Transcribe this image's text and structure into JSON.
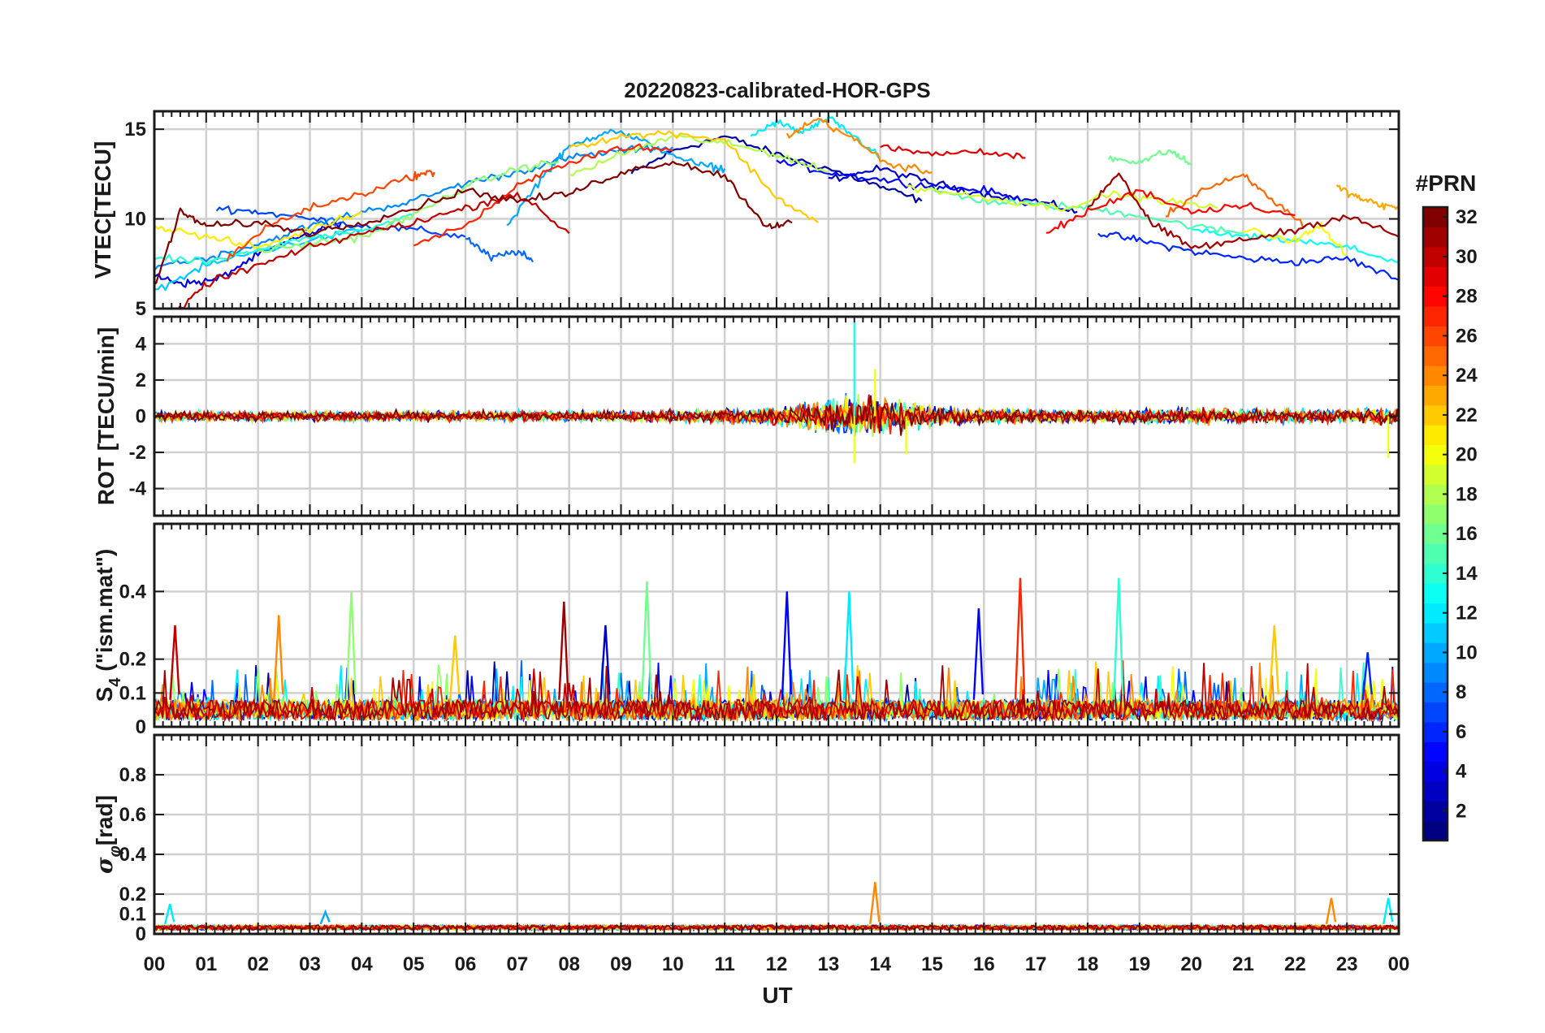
{
  "chart_data": {
    "type": "line",
    "title": "20220823-calibrated-HOR-GPS",
    "xlabel": "UT",
    "x_tick_labels": [
      "00",
      "01",
      "02",
      "03",
      "04",
      "05",
      "06",
      "07",
      "08",
      "09",
      "10",
      "11",
      "12",
      "13",
      "14",
      "15",
      "16",
      "17",
      "18",
      "19",
      "20",
      "21",
      "22",
      "23",
      "00"
    ],
    "xlim": [
      0,
      24
    ],
    "grid": true,
    "colorbar": {
      "label": "#PRN",
      "range": [
        1,
        32
      ],
      "colormap": "jet",
      "tick_labels": [
        "2",
        "4",
        "6",
        "8",
        "10",
        "12",
        "14",
        "16",
        "18",
        "20",
        "22",
        "24",
        "26",
        "28",
        "30",
        "32"
      ],
      "jet_colors": [
        "#000080",
        "#0000ff",
        "#0080ff",
        "#00ffff",
        "#80ff80",
        "#ffff00",
        "#ff8000",
        "#ff0000",
        "#800000"
      ]
    },
    "panels": [
      {
        "id": "vtec",
        "ylabel": "VTEC[TECU]",
        "ylim": [
          5,
          16
        ],
        "y_ticks": [
          5,
          10,
          15
        ],
        "y_tick_labels": [
          "5",
          "10",
          "15"
        ],
        "series": [
          {
            "prn": 2,
            "x": [
              9.2,
              10.0,
              11.0,
              12.0,
              13.0,
              14.0,
              14.8
            ],
            "y": [
              12.5,
              13.8,
              14.6,
              13.6,
              12.8,
              11.8,
              11.0
            ]
          },
          {
            "prn": 3,
            "x": [
              13.0,
              14.0,
              15.0,
              16.0,
              17.0,
              17.8
            ],
            "y": [
              12.2,
              12.8,
              12.0,
              11.4,
              11.0,
              10.4
            ]
          },
          {
            "prn": 4,
            "x": [
              0.0,
              0.6,
              1.2,
              2.0,
              3.0,
              3.6
            ],
            "y": [
              6.8,
              6.4,
              6.6,
              8.0,
              9.2,
              9.8
            ]
          },
          {
            "prn": 5,
            "x": [
              12.0,
              13.0,
              14.0,
              15.0,
              16.0,
              17.0
            ],
            "y": [
              13.2,
              12.6,
              12.2,
              11.8,
              11.6,
              10.8
            ]
          },
          {
            "prn": 6,
            "x": [
              18.2,
              19.0,
              20.0,
              21.0,
              22.0,
              23.0,
              24.0
            ],
            "y": [
              9.2,
              8.8,
              8.2,
              7.8,
              7.6,
              7.8,
              6.6
            ]
          },
          {
            "prn": 7,
            "x": [
              1.2,
              2.0,
              3.0,
              4.0,
              5.0,
              6.0
            ],
            "y": [
              10.6,
              10.4,
              10.0,
              9.6,
              9.4,
              9.0
            ]
          },
          {
            "prn": 8,
            "x": [
              6.0,
              6.5,
              7.0,
              7.3
            ],
            "y": [
              9.0,
              7.8,
              8.2,
              7.6
            ]
          },
          {
            "prn": 9,
            "x": [
              0.0,
              1.0,
              2.0,
              3.0,
              4.0,
              5.0,
              6.0,
              7.0,
              8.0,
              9.0,
              10.0
            ],
            "y": [
              7.4,
              7.8,
              8.6,
              9.6,
              10.4,
              11.0,
              12.0,
              12.6,
              13.4,
              13.8,
              14.0
            ]
          },
          {
            "prn": 10,
            "x": [
              6.8,
              7.5,
              8.0,
              8.8,
              9.5,
              10.5,
              11.0
            ],
            "y": [
              9.6,
              12.4,
              14.0,
              15.0,
              14.2,
              13.0,
              12.8
            ]
          },
          {
            "prn": 11,
            "x": [
              0.0,
              1.0,
              2.0,
              3.0,
              4.0
            ],
            "y": [
              6.0,
              7.4,
              8.2,
              8.8,
              9.4
            ]
          },
          {
            "prn": 12,
            "x": [
              11.5,
              12.0,
              12.5,
              13.0,
              13.5,
              14.0
            ],
            "y": [
              14.6,
              15.4,
              14.8,
              15.6,
              14.6,
              13.4
            ]
          },
          {
            "prn": 13,
            "x": [
              20.0,
              21.0,
              22.0,
              23.0,
              24.0
            ],
            "y": [
              9.4,
              9.0,
              8.8,
              8.4,
              7.6
            ]
          },
          {
            "prn": 14,
            "x": [
              0.0,
              1.0,
              2.0,
              3.0,
              4.0,
              5.0
            ],
            "y": [
              7.8,
              7.6,
              8.2,
              9.0,
              9.4,
              10.2
            ]
          },
          {
            "prn": 15,
            "x": [
              15.0,
              16.0,
              17.0,
              18.0,
              19.0,
              20.0,
              21.0
            ],
            "y": [
              11.6,
              11.0,
              10.8,
              10.6,
              10.2,
              9.6,
              9.2
            ]
          },
          {
            "prn": 16,
            "x": [
              18.4,
              19.0,
              19.6,
              20.0
            ],
            "y": [
              13.4,
              13.2,
              13.8,
              13.0
            ]
          },
          {
            "prn": 17,
            "x": [
              2.0,
              3.0,
              4.0,
              5.0,
              6.0,
              7.0,
              7.8
            ],
            "y": [
              8.2,
              8.6,
              9.0,
              10.2,
              11.8,
              12.8,
              13.2
            ]
          },
          {
            "prn": 18,
            "x": [
              8.0,
              9.0,
              10.0,
              11.0,
              12.0,
              13.0
            ],
            "y": [
              12.4,
              13.6,
              14.6,
              14.2,
              13.6,
              12.6
            ]
          },
          {
            "prn": 19,
            "x": [
              14.5,
              15.5,
              16.5,
              17.5,
              18.5,
              19.5,
              20.5
            ],
            "y": [
              11.8,
              11.4,
              11.0,
              10.6,
              11.4,
              11.0,
              10.6
            ]
          },
          {
            "prn": 20,
            "x": [
              21.0,
              22.0,
              22.5,
              23.0
            ],
            "y": [
              9.4,
              8.8,
              9.6,
              8.0
            ]
          },
          {
            "prn": 21,
            "x": [
              0.0,
              1.0,
              2.0,
              3.0,
              4.0
            ],
            "y": [
              9.6,
              9.0,
              8.4,
              9.4,
              10.4
            ]
          },
          {
            "prn": 22,
            "x": [
              8.0,
              9.0,
              10.0,
              11.0,
              12.0,
              12.8
            ],
            "y": [
              14.0,
              14.6,
              14.8,
              14.4,
              11.2,
              9.8
            ]
          },
          {
            "prn": 23,
            "x": [
              22.8,
              23.2,
              23.6,
              24.0
            ],
            "y": [
              11.8,
              11.2,
              10.8,
              10.6
            ]
          },
          {
            "prn": 24,
            "x": [
              12.2,
              12.8,
              13.5,
              14.2,
              15.0
            ],
            "y": [
              14.6,
              15.6,
              14.4,
              13.0,
              12.6
            ]
          },
          {
            "prn": 25,
            "x": [
              19.5,
              20.2,
              21.0,
              21.5,
              22.2
            ],
            "y": [
              10.2,
              11.6,
              12.4,
              11.2,
              9.6
            ]
          },
          {
            "prn": 26,
            "x": [
              1.4,
              2.2,
              3.0,
              4.0,
              5.0,
              5.4
            ],
            "y": [
              7.8,
              9.6,
              10.6,
              11.4,
              12.4,
              12.6
            ]
          },
          {
            "prn": 27,
            "x": [
              5.0,
              6.0,
              7.0,
              8.0,
              9.0,
              10.0
            ],
            "y": [
              8.6,
              9.6,
              11.8,
              13.2,
              14.0,
              13.8
            ]
          },
          {
            "prn": 28,
            "x": [
              17.2,
              18.0,
              19.0,
              20.0,
              21.0,
              22.0
            ],
            "y": [
              9.2,
              10.4,
              11.6,
              10.4,
              10.8,
              10.2
            ]
          },
          {
            "prn": 29,
            "x": [
              14.0,
              15.0,
              16.0,
              16.8
            ],
            "y": [
              14.0,
              13.6,
              13.8,
              13.4
            ]
          },
          {
            "prn": 30,
            "x": [
              0.4,
              1.0,
              2.0,
              3.0,
              4.0,
              5.0,
              6.0,
              7.0,
              8.0
            ],
            "y": [
              4.6,
              6.4,
              7.4,
              8.4,
              9.2,
              9.8,
              10.6,
              11.4,
              9.2
            ]
          },
          {
            "prn": 31,
            "x": [
              18.0,
              18.6,
              19.2,
              20.0,
              21.0,
              22.0,
              23.0,
              24.0
            ],
            "y": [
              10.6,
              12.6,
              9.8,
              8.4,
              8.8,
              9.4,
              10.2,
              9.0
            ]
          },
          {
            "prn": 32,
            "x": [
              0.0,
              0.5,
              1.0,
              2.0,
              3.0,
              4.0,
              5.0,
              6.0,
              7.0,
              8.0,
              9.0,
              10.0,
              11.0,
              11.8,
              12.3
            ],
            "y": [
              6.2,
              10.4,
              9.6,
              9.8,
              9.2,
              9.8,
              10.6,
              11.6,
              11.0,
              11.4,
              12.6,
              13.2,
              12.4,
              9.6,
              9.8
            ]
          }
        ]
      },
      {
        "id": "rot",
        "ylabel": "ROT [TECU/min]",
        "ylim": [
          -5.5,
          5.5
        ],
        "y_ticks": [
          -4,
          -2,
          0,
          2,
          4
        ],
        "y_tick_labels": [
          "-4",
          "-2",
          "0",
          "2",
          "4"
        ],
        "noise_profile": {
          "t": [
            0,
            4,
            8,
            10,
            11,
            12,
            12.5,
            13,
            13.5,
            14,
            14.5,
            15,
            16,
            18,
            20,
            22,
            23,
            24
          ],
          "amp": [
            0.35,
            0.4,
            0.4,
            0.45,
            0.55,
            0.7,
            0.9,
            1.3,
            1.6,
            1.5,
            1.2,
            0.8,
            0.55,
            0.5,
            0.6,
            0.5,
            0.6,
            0.7
          ]
        },
        "peaks": [
          {
            "x": 13.5,
            "y": 5.2
          },
          {
            "x": 13.5,
            "y": -2.6
          },
          {
            "x": 14.5,
            "y": -2.1
          },
          {
            "x": 13.9,
            "y": 2.6
          },
          {
            "x": 23.8,
            "y": -2.3
          }
        ]
      },
      {
        "id": "s4",
        "ylabel": "S",
        "ylabel_sub": "4",
        "ylabel_suffix": " (\"ism.mat\")",
        "ylim": [
          0,
          0.6
        ],
        "y_ticks": [
          0,
          0.1,
          0.2,
          0.4
        ],
        "y_tick_labels": [
          "0",
          "0.1",
          "0.2",
          "0.4"
        ],
        "baseline_range": [
          0.02,
          0.08
        ],
        "peaks": [
          {
            "x": 0.4,
            "y": 0.3,
            "prn": 30
          },
          {
            "x": 2.4,
            "y": 0.33,
            "prn": 24
          },
          {
            "x": 3.8,
            "y": 0.4,
            "prn": 17
          },
          {
            "x": 5.8,
            "y": 0.27,
            "prn": 22
          },
          {
            "x": 7.9,
            "y": 0.37,
            "prn": 31
          },
          {
            "x": 8.7,
            "y": 0.3,
            "prn": 3
          },
          {
            "x": 9.5,
            "y": 0.43,
            "prn": 16
          },
          {
            "x": 12.2,
            "y": 0.4,
            "prn": 5
          },
          {
            "x": 13.4,
            "y": 0.4,
            "prn": 12
          },
          {
            "x": 15.9,
            "y": 0.35,
            "prn": 5
          },
          {
            "x": 16.7,
            "y": 0.44,
            "prn": 27
          },
          {
            "x": 18.6,
            "y": 0.44,
            "prn": 14
          },
          {
            "x": 21.6,
            "y": 0.3,
            "prn": 22
          },
          {
            "x": 23.4,
            "y": 0.22,
            "prn": 6
          }
        ]
      },
      {
        "id": "sigma",
        "ylabel": "σ",
        "ylabel_sub": "φ",
        "ylabel_suffix": "[rad]",
        "ylim": [
          0,
          1
        ],
        "y_ticks": [
          0,
          0.1,
          0.2,
          0.4,
          0.6,
          0.8
        ],
        "y_tick_labels": [
          "0",
          "0.1",
          "0.2",
          "0.4",
          "0.6",
          "0.8"
        ],
        "baseline_range": [
          0.02,
          0.05
        ],
        "peaks": [
          {
            "x": 13.9,
            "y": 0.26,
            "prn": 24
          },
          {
            "x": 0.3,
            "y": 0.15,
            "prn": 12
          },
          {
            "x": 23.8,
            "y": 0.18,
            "prn": 12
          },
          {
            "x": 22.7,
            "y": 0.18,
            "prn": 24
          },
          {
            "x": 3.3,
            "y": 0.11,
            "prn": 10
          }
        ]
      }
    ]
  }
}
